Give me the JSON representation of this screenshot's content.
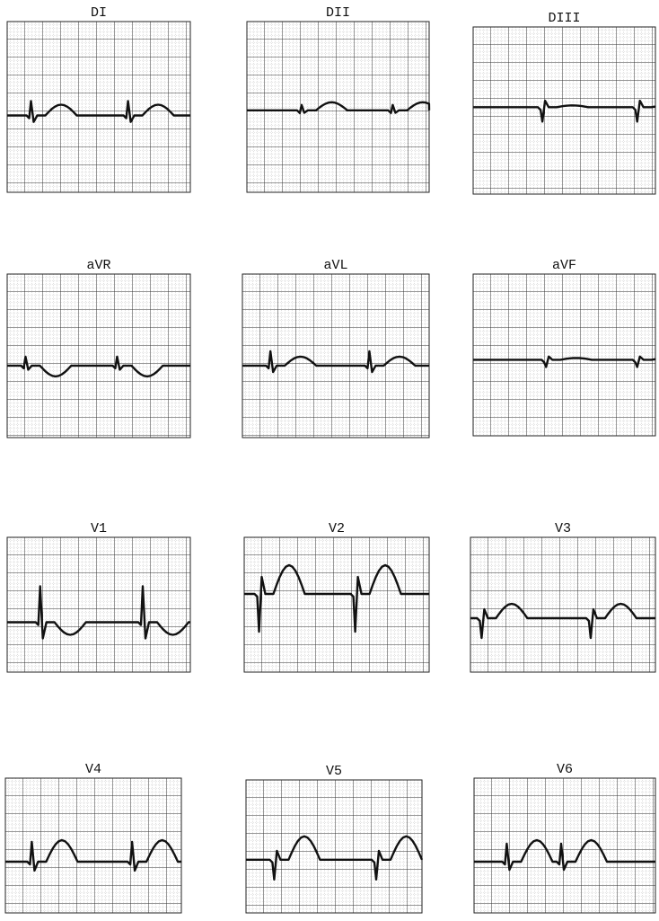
{
  "leads": [
    {
      "label": "DI"
    },
    {
      "label": "DII"
    },
    {
      "label": "DIII"
    },
    {
      "label": "aVR"
    },
    {
      "label": "aVL"
    },
    {
      "label": "aVF"
    },
    {
      "label": "V1"
    },
    {
      "label": "V2"
    },
    {
      "label": "V3"
    },
    {
      "label": "V4"
    },
    {
      "label": "V5"
    },
    {
      "label": "V6"
    }
  ]
}
